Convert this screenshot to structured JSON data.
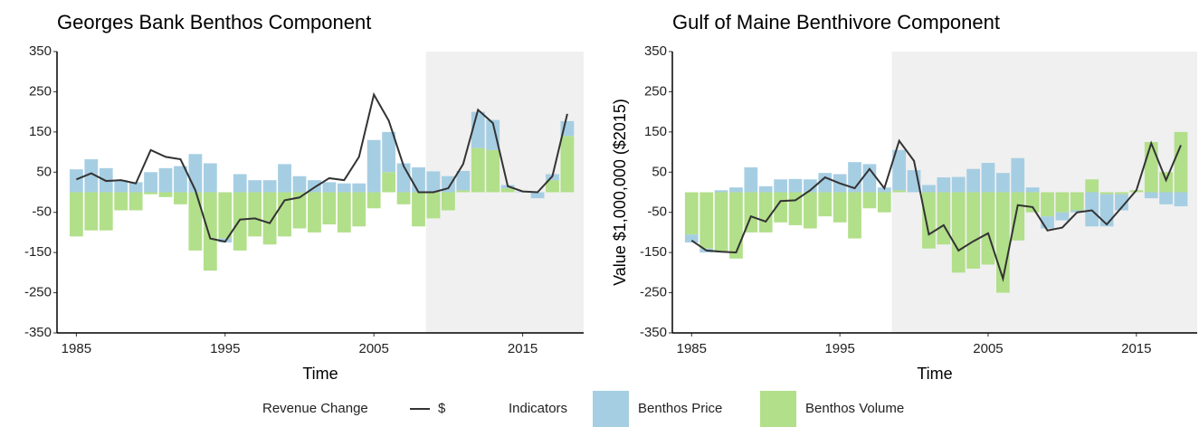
{
  "chart_data": [
    {
      "type": "bar",
      "title": "Georges Bank Benthos Component",
      "x_label": "Time",
      "x": [
        1985,
        1986,
        1987,
        1988,
        1989,
        1990,
        1991,
        1992,
        1993,
        1994,
        1995,
        1996,
        1997,
        1998,
        1999,
        2000,
        2001,
        2002,
        2003,
        2004,
        2005,
        2006,
        2007,
        2008,
        2009,
        2010,
        2011,
        2012,
        2013,
        2014,
        2015,
        2016,
        2017,
        2018
      ],
      "series": [
        {
          "name": "Benthos Volume",
          "color": "#b2df8a",
          "values": [
            -110,
            -95,
            -95,
            -45,
            -45,
            -5,
            -12,
            -30,
            -145,
            -195,
            -115,
            -145,
            -110,
            -130,
            -110,
            -90,
            -100,
            -80,
            -100,
            -85,
            -40,
            50,
            -30,
            -85,
            -65,
            -45,
            5,
            110,
            105,
            10,
            0,
            0,
            30,
            140
          ]
        },
        {
          "name": "Benthos Price",
          "color": "#a6cee3",
          "values": [
            57,
            82,
            60,
            30,
            25,
            50,
            60,
            65,
            95,
            72,
            -10,
            45,
            30,
            30,
            70,
            40,
            30,
            25,
            22,
            22,
            130,
            100,
            72,
            62,
            52,
            40,
            48,
            90,
            75,
            8,
            2,
            -15,
            15,
            37
          ]
        },
        {
          "name": "$",
          "type": "line",
          "color": "#333333",
          "values": [
            32,
            47,
            28,
            30,
            22,
            105,
            88,
            82,
            5,
            -115,
            -123,
            -68,
            -65,
            -77,
            -20,
            -13,
            12,
            35,
            30,
            88,
            243,
            178,
            65,
            0,
            0,
            10,
            70,
            205,
            172,
            15,
            2,
            0,
            40,
            195
          ]
        }
      ],
      "xlim": [
        1983.7,
        2019.1
      ],
      "xticks": [
        1985,
        1995,
        2005,
        2015
      ],
      "ylim": [
        -350,
        350
      ],
      "yticks": [
        -350,
        -250,
        -150,
        -50,
        50,
        150,
        250,
        350
      ],
      "shade_from": 2008.5
    },
    {
      "type": "bar",
      "title": "Gulf of Maine Benthivore Component",
      "x_label": "Time",
      "y_label": "Value $1,000,000 ($2015)",
      "x": [
        1985,
        1986,
        1987,
        1988,
        1989,
        1990,
        1991,
        1992,
        1993,
        1994,
        1995,
        1996,
        1997,
        1998,
        1999,
        2000,
        2001,
        2002,
        2003,
        2004,
        2005,
        2006,
        2007,
        2008,
        2009,
        2010,
        2011,
        2012,
        2013,
        2014,
        2015,
        2016,
        2017,
        2018
      ],
      "series": [
        {
          "name": "Benthos Volume",
          "color": "#b2df8a",
          "values": [
            -105,
            -140,
            -150,
            -165,
            -100,
            -100,
            -75,
            -82,
            -90,
            -60,
            -75,
            -115,
            -40,
            -50,
            5,
            0,
            -140,
            -130,
            -200,
            -190,
            -180,
            -250,
            -120,
            -50,
            -60,
            -50,
            -45,
            32,
            -5,
            -5,
            5,
            125,
            50,
            150
          ]
        },
        {
          "name": "Benthos Price",
          "color": "#a6cee3",
          "values": [
            -20,
            -10,
            5,
            12,
            62,
            15,
            32,
            33,
            32,
            48,
            45,
            75,
            70,
            12,
            100,
            55,
            18,
            37,
            38,
            58,
            73,
            48,
            85,
            12,
            -30,
            -20,
            -5,
            -85,
            -80,
            -40,
            0,
            -15,
            -30,
            -35
          ]
        },
        {
          "name": "$",
          "type": "line",
          "color": "#333333",
          "values": [
            -120,
            -145,
            -148,
            -150,
            -60,
            -73,
            -22,
            -20,
            5,
            37,
            22,
            10,
            58,
            10,
            128,
            78,
            -105,
            -82,
            -145,
            -122,
            -102,
            -215,
            -32,
            -37,
            -95,
            -88,
            -50,
            -45,
            -80,
            -38,
            5,
            122,
            30,
            117
          ]
        }
      ],
      "xlim": [
        1983.7,
        2019.1
      ],
      "xticks": [
        1985,
        1995,
        2005,
        2015
      ],
      "ylim": [
        -350,
        350
      ],
      "yticks": [
        -350,
        -250,
        -150,
        -50,
        50,
        150,
        250,
        350
      ],
      "shade_from": 1998.5
    }
  ],
  "legend": {
    "line_title": "Revenue Change",
    "bar_title": "Indicators"
  }
}
